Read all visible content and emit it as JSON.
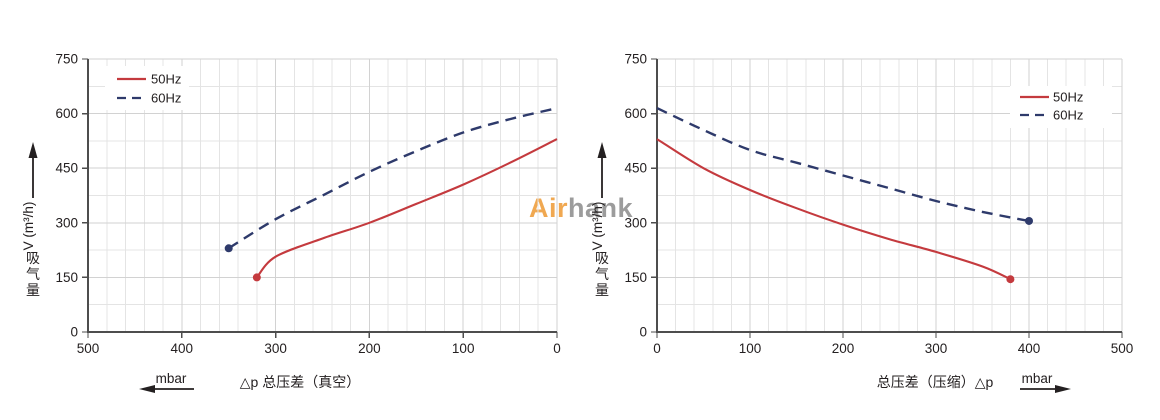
{
  "watermark": {
    "part1": "Air",
    "part2": "hank",
    "part1_color": "#f0a851",
    "part2_color": "#9c9c9c"
  },
  "palette": {
    "series_50hz": "#c43a3e",
    "series_60hz": "#2e3a6b",
    "grid_minor": "#e4e4e4",
    "grid_major": "#d2d2d2",
    "axis": "#4d4d4d",
    "text": "#242021"
  },
  "chart_data": [
    {
      "type": "line",
      "id": "vacuum",
      "title": "",
      "xlabel": "△p  总压差（真空）",
      "xunit": "mbar",
      "ylabel_chars": [
        "吸",
        "气",
        "量"
      ],
      "ylabel_unit": "V (m³/h)",
      "x_direction": "reversed",
      "xlim": [
        0,
        500
      ],
      "ylim": [
        0,
        750
      ],
      "x_ticks": [
        500,
        400,
        300,
        200,
        100,
        0
      ],
      "y_ticks": [
        0,
        150,
        300,
        450,
        600,
        750
      ],
      "x_minor_step": 20,
      "y_minor_step": 75,
      "grid": true,
      "legend_position": "top-left",
      "series": [
        {
          "name": "50Hz",
          "style": "solid",
          "color": "#c43a3e",
          "marker": [
            320,
            150
          ],
          "points": [
            [
              320,
              150
            ],
            [
              300,
              207
            ],
            [
              250,
              257
            ],
            [
              200,
              300
            ],
            [
              150,
              352
            ],
            [
              100,
              405
            ],
            [
              50,
              465
            ],
            [
              0,
              530
            ]
          ]
        },
        {
          "name": "60Hz",
          "style": "dashed",
          "color": "#2e3a6b",
          "marker": [
            350,
            230
          ],
          "points": [
            [
              350,
              230
            ],
            [
              300,
              310
            ],
            [
              250,
              375
            ],
            [
              200,
              440
            ],
            [
              150,
              497
            ],
            [
              100,
              548
            ],
            [
              50,
              585
            ],
            [
              0,
              615
            ]
          ]
        }
      ]
    },
    {
      "type": "line",
      "id": "compression",
      "title": "",
      "xlabel": "总压差（压缩）△p",
      "xunit": "mbar",
      "ylabel_chars": [
        "吸",
        "气",
        "量"
      ],
      "ylabel_unit": "V (m³/h)",
      "x_direction": "normal",
      "xlim": [
        0,
        500
      ],
      "ylim": [
        0,
        750
      ],
      "x_ticks": [
        0,
        100,
        200,
        300,
        400,
        500
      ],
      "y_ticks": [
        0,
        150,
        300,
        450,
        600,
        750
      ],
      "x_minor_step": 20,
      "y_minor_step": 75,
      "grid": true,
      "legend_position": "top-right",
      "series": [
        {
          "name": "50Hz",
          "style": "solid",
          "color": "#c43a3e",
          "marker": [
            380,
            145
          ],
          "points": [
            [
              0,
              530
            ],
            [
              50,
              450
            ],
            [
              100,
              390
            ],
            [
              150,
              340
            ],
            [
              200,
              295
            ],
            [
              250,
              255
            ],
            [
              300,
              220
            ],
            [
              350,
              180
            ],
            [
              380,
              145
            ]
          ]
        },
        {
          "name": "60Hz",
          "style": "dashed",
          "color": "#2e3a6b",
          "marker": [
            400,
            305
          ],
          "points": [
            [
              0,
              615
            ],
            [
              50,
              555
            ],
            [
              100,
              500
            ],
            [
              150,
              465
            ],
            [
              200,
              430
            ],
            [
              250,
              395
            ],
            [
              300,
              360
            ],
            [
              350,
              330
            ],
            [
              400,
              305
            ]
          ]
        }
      ]
    }
  ]
}
